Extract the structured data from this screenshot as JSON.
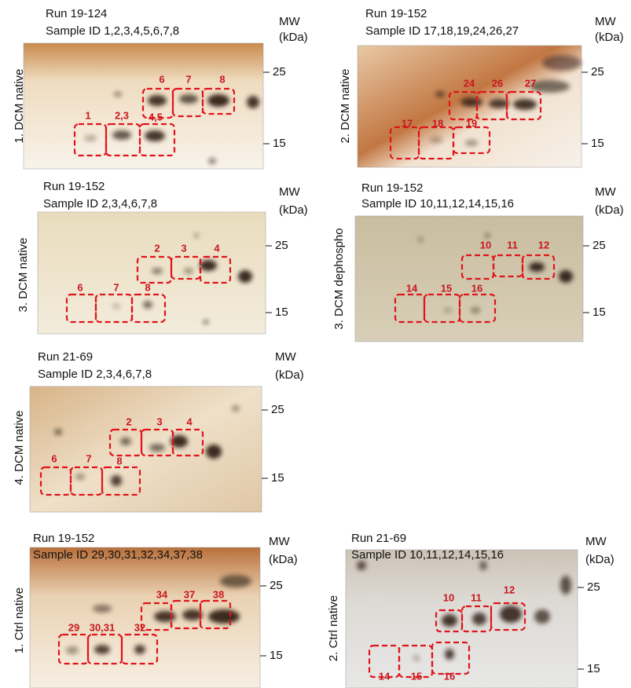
{
  "panels": [
    {
      "run": "Run 19-124",
      "sample": "Sample ID 1,2,3,4,5,6,7,8",
      "side_label": "1. DCM native",
      "mw_label": "MW",
      "mw_unit": "(kDa)",
      "mw_ticks": [
        25,
        15
      ],
      "boxes": [
        "1",
        "2,3",
        "4,5",
        "6",
        "7",
        "8"
      ]
    },
    {
      "run": "Run 19-152",
      "sample": "Sample ID 17,18,19,24,26,27",
      "side_label": "2. DCM native",
      "mw_label": "MW",
      "mw_unit": "(kDa)",
      "mw_ticks": [
        25,
        15
      ],
      "boxes": [
        "17",
        "18",
        "19",
        "24",
        "26",
        "27"
      ]
    },
    {
      "run": "Run 19-152",
      "sample": "Sample ID 2,3,4,6,7,8",
      "side_label": "3. DCM native",
      "mw_label": "MW",
      "mw_unit": "(kDa)",
      "mw_ticks": [
        25,
        15
      ],
      "boxes": [
        "2",
        "3",
        "4",
        "6",
        "7",
        "8"
      ]
    },
    {
      "run": "Run 19-152",
      "sample": "Sample ID 10,11,12,14,15,16",
      "side_label": "3. DCM dephospho",
      "mw_label": "MW",
      "mw_unit": "(kDa)",
      "mw_ticks": [
        25,
        15
      ],
      "boxes": [
        "10",
        "11",
        "12",
        "14",
        "15",
        "16"
      ]
    },
    {
      "run": "Run 21-69",
      "sample": "Sample ID 2,3,4,6,7,8",
      "side_label": "4. DCM native",
      "mw_label": "MW",
      "mw_unit": "(kDa)",
      "mw_ticks": [
        25,
        15
      ],
      "boxes": [
        "2",
        "3",
        "4",
        "6",
        "7",
        "8"
      ]
    },
    {
      "run": "Run 19-152",
      "sample": "Sample ID 29,30,31,32,34,37,38",
      "side_label": "1. Ctrl native",
      "mw_label": "MW",
      "mw_unit": "(kDa)",
      "mw_ticks": [
        25,
        15
      ],
      "boxes": [
        "29",
        "30,31",
        "32",
        "34",
        "37",
        "38"
      ]
    },
    {
      "run": "Run 21-69",
      "sample": "Sample ID 10,11,12,14,15,16",
      "side_label": "2. Ctrl native",
      "mw_label": "MW",
      "mw_unit": "(kDa)",
      "mw_ticks": [
        25,
        15
      ],
      "boxes": [
        "10",
        "11",
        "12",
        "14",
        "15",
        "16"
      ]
    }
  ]
}
